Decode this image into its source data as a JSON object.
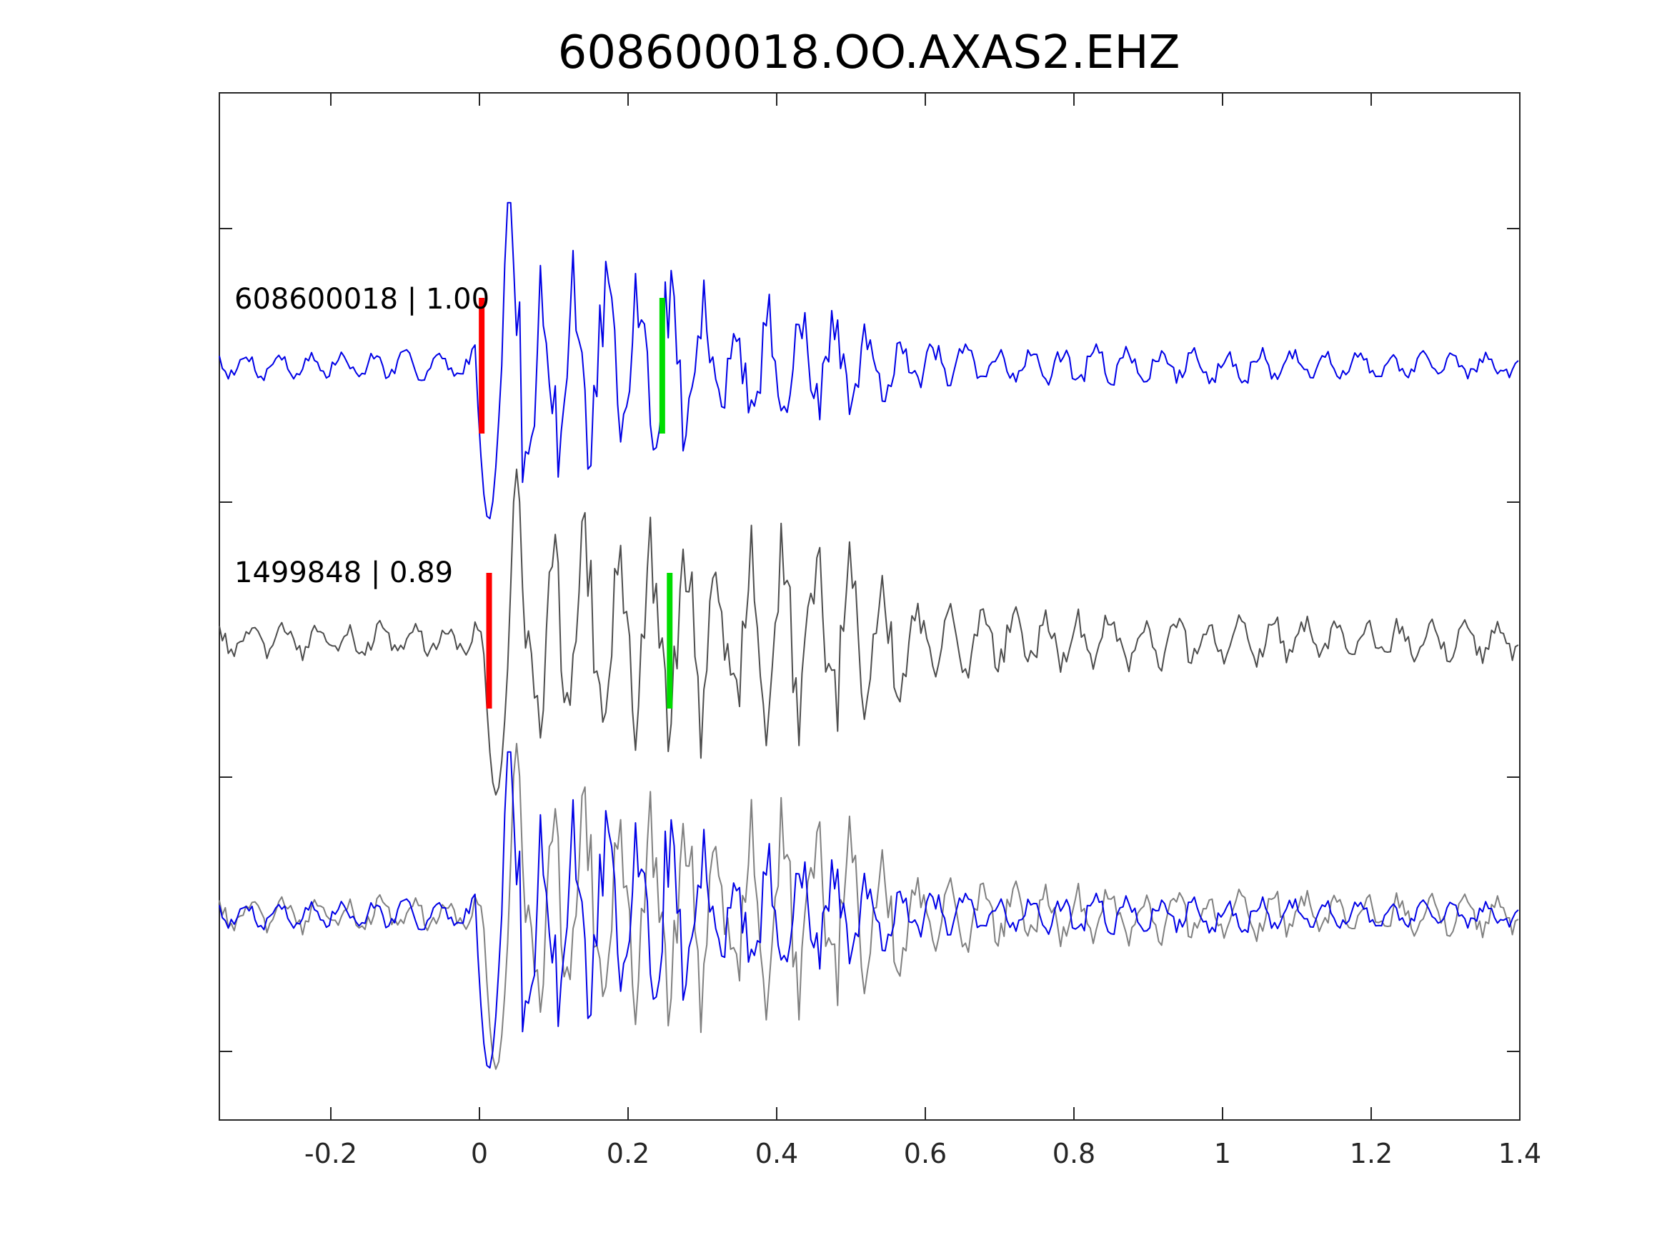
{
  "chart_data": {
    "type": "line",
    "title": "608600018.OO.AXAS2.EHZ",
    "xlabel": "",
    "ylabel": "",
    "xlim": [
      -0.35,
      1.4
    ],
    "x_ticks": [
      -0.2,
      0,
      0.2,
      0.4,
      0.6,
      0.8,
      1,
      1.2,
      1.4
    ],
    "x_tick_labels": [
      "-0.2",
      "0",
      "0.2",
      "0.4",
      "0.6",
      "0.8",
      "1",
      "1.2",
      "1.4"
    ],
    "grid": false,
    "legend": "none",
    "colors": {
      "template": "#0000e6",
      "detection": "#4d4d4d",
      "overlay_detection": "#808080",
      "p_pick": "#ff0000",
      "s_pick": "#00dd00",
      "axes": "#262626"
    },
    "traces": [
      {
        "label": "608600018 | 1.00",
        "color": "#0000e6",
        "p_pick": 0.003,
        "s_pick": 0.246,
        "envelope_x": [
          -0.35,
          -0.05,
          -0.01,
          0.0,
          0.02,
          0.04,
          0.08,
          0.15,
          0.2,
          0.25,
          0.3,
          0.38,
          0.45,
          0.5,
          0.55,
          0.62,
          0.7,
          0.8,
          0.9,
          1.0,
          1.2,
          1.4
        ],
        "envelope_amp": [
          0.08,
          0.08,
          0.12,
          0.15,
          0.9,
          1.0,
          0.55,
          0.6,
          0.55,
          0.55,
          0.45,
          0.4,
          0.35,
          0.3,
          0.18,
          0.15,
          0.1,
          0.12,
          0.1,
          0.1,
          0.08,
          0.08
        ]
      },
      {
        "label": "1499848 | 0.89",
        "color": "#4d4d4d",
        "p_pick": 0.013,
        "s_pick": 0.256,
        "envelope_x": [
          -0.35,
          -0.05,
          0.0,
          0.02,
          0.04,
          0.08,
          0.15,
          0.2,
          0.25,
          0.3,
          0.38,
          0.45,
          0.5,
          0.55,
          0.6,
          0.7,
          0.8,
          0.9,
          1.0,
          1.2,
          1.4
        ],
        "envelope_amp": [
          0.1,
          0.1,
          0.15,
          0.85,
          1.1,
          0.6,
          0.65,
          0.65,
          0.6,
          0.6,
          0.6,
          0.55,
          0.5,
          0.35,
          0.22,
          0.18,
          0.16,
          0.15,
          0.15,
          0.12,
          0.12
        ]
      }
    ],
    "overlay": {
      "series": [
        "1499848 | 0.89",
        "608600018 | 1.00"
      ],
      "colors": [
        "#808080",
        "#0000e6"
      ]
    }
  }
}
